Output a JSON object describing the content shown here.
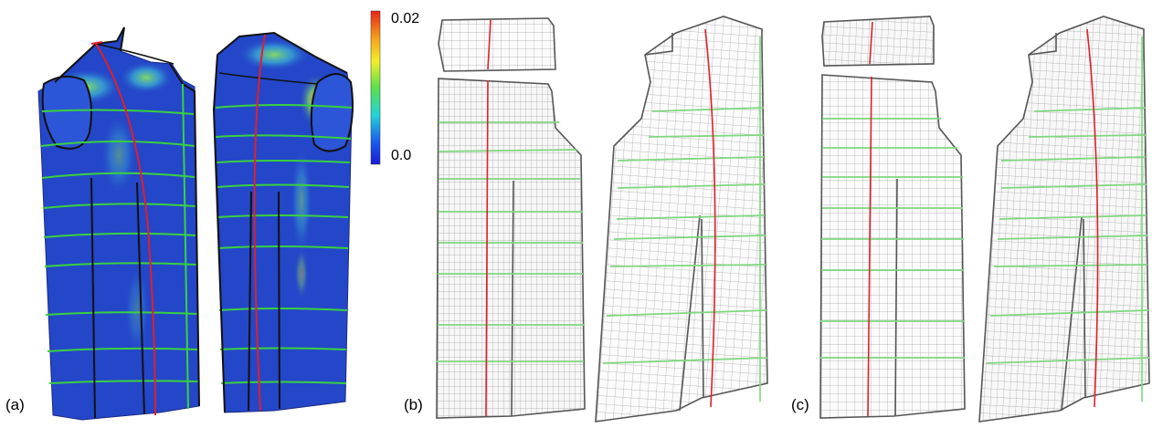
{
  "figure": {
    "panels": [
      {
        "id": "a",
        "label": "(a)"
      },
      {
        "id": "b",
        "label": "(b)"
      },
      {
        "id": "c",
        "label": "(c)"
      }
    ],
    "colorbar": {
      "max_label": "0.02",
      "min_label": "0.0",
      "colors": [
        "#e8231a",
        "#f6a21b",
        "#f2ef2a",
        "#5ae04b",
        "#22d3d8",
        "#1a5ef2",
        "#1a1ad6"
      ]
    },
    "colors": {
      "garment_blue": "#2446c9",
      "seam_green": "#39d13f",
      "seam_red": "#e0202a",
      "mesh_grey": "#9a9a9a",
      "outline_dark": "#555555"
    }
  }
}
